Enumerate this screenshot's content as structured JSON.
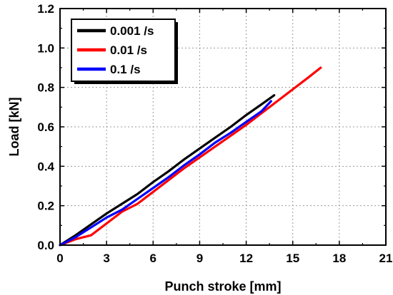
{
  "chart_data": {
    "type": "line",
    "xlabel": "Punch stroke [mm]",
    "ylabel": "Load [kN]",
    "xlim": [
      0,
      21
    ],
    "ylim": [
      0,
      1.2
    ],
    "xticks": [
      "0",
      "3",
      "6",
      "9",
      "12",
      "15",
      "18",
      "21"
    ],
    "yticks": [
      "0.0",
      "0.2",
      "0.4",
      "0.6",
      "0.8",
      "1.0",
      "1.2"
    ],
    "grid": true,
    "legend_position": "top-left",
    "series": [
      {
        "name": "0.001 /s",
        "color": "#000000",
        "points": [
          [
            0.0,
            0.0
          ],
          [
            1.0,
            0.05
          ],
          [
            2.0,
            0.105
          ],
          [
            3.0,
            0.16
          ],
          [
            4.0,
            0.21
          ],
          [
            5.0,
            0.26
          ],
          [
            6.0,
            0.32
          ],
          [
            7.0,
            0.375
          ],
          [
            8.0,
            0.435
          ],
          [
            9.0,
            0.49
          ],
          [
            10.0,
            0.545
          ],
          [
            11.0,
            0.6
          ],
          [
            12.0,
            0.66
          ],
          [
            13.0,
            0.715
          ],
          [
            13.8,
            0.76
          ]
        ]
      },
      {
        "name": "0.01 /s",
        "color": "#ff0000",
        "points": [
          [
            0.0,
            0.0
          ],
          [
            1.0,
            0.03
          ],
          [
            2.0,
            0.05
          ],
          [
            3.0,
            0.11
          ],
          [
            4.0,
            0.17
          ],
          [
            5.0,
            0.21
          ],
          [
            6.0,
            0.27
          ],
          [
            7.0,
            0.33
          ],
          [
            8.0,
            0.39
          ],
          [
            9.0,
            0.445
          ],
          [
            10.0,
            0.5
          ],
          [
            11.0,
            0.555
          ],
          [
            12.0,
            0.61
          ],
          [
            13.0,
            0.67
          ],
          [
            14.0,
            0.73
          ],
          [
            15.0,
            0.79
          ],
          [
            16.0,
            0.85
          ],
          [
            16.8,
            0.9
          ]
        ]
      },
      {
        "name": "0.1 /s",
        "color": "#0000ff",
        "points": [
          [
            0.0,
            0.0
          ],
          [
            1.0,
            0.04
          ],
          [
            2.0,
            0.09
          ],
          [
            3.0,
            0.14
          ],
          [
            4.0,
            0.18
          ],
          [
            5.0,
            0.235
          ],
          [
            6.0,
            0.29
          ],
          [
            7.0,
            0.345
          ],
          [
            8.0,
            0.405
          ],
          [
            9.0,
            0.46
          ],
          [
            10.0,
            0.52
          ],
          [
            11.0,
            0.57
          ],
          [
            12.0,
            0.625
          ],
          [
            13.0,
            0.68
          ],
          [
            13.6,
            0.73
          ]
        ]
      }
    ]
  }
}
